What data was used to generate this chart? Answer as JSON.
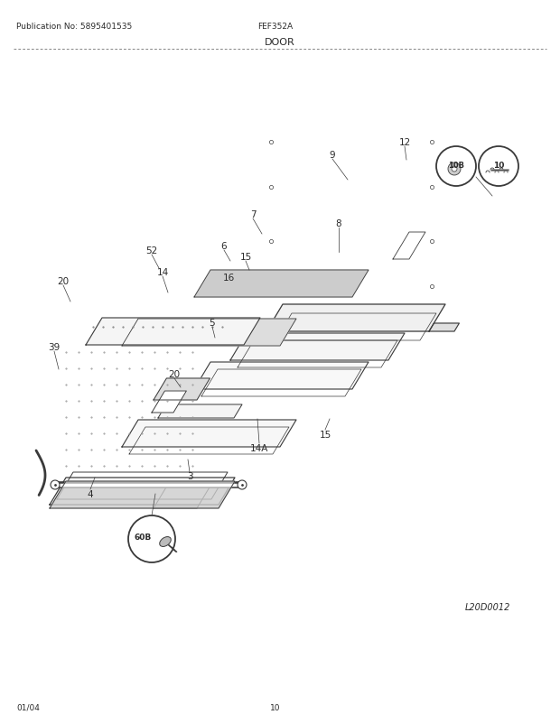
{
  "title_left": "Publication No: 5895401535",
  "title_center": "FEF352A",
  "title_section": "DOOR",
  "footer_left": "01/04",
  "footer_center": "10",
  "diagram_id": "L20D0012",
  "bg_color": "#ffffff",
  "line_color": "#3a3a3a",
  "text_color": "#2a2a2a",
  "panel_fill": "#f8f8f8",
  "shade_fill": "#e8e8e8"
}
